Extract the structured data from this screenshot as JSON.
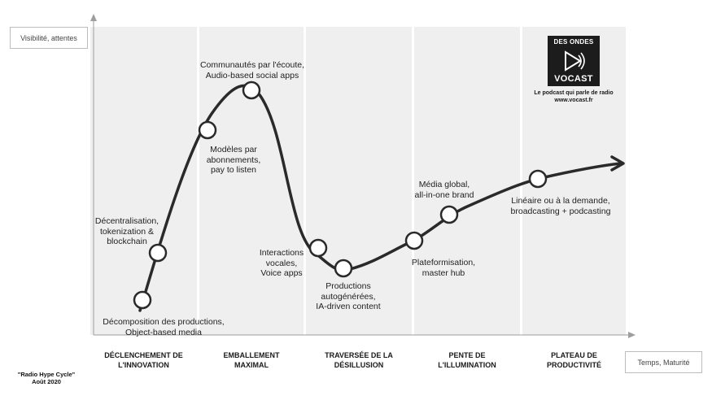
{
  "axes": {
    "y_label": "Visibilité, attentes",
    "x_label": "Temps, Maturité"
  },
  "phases": [
    "DÉCLENCHEMENT DE\nL'INNOVATION",
    "EMBALLEMENT\nMAXIMAL",
    "TRAVERSÉE DE LA\nDÉSILLUSION",
    "PENTE DE\nL'ILLUMINATION",
    "PLATEAU DE\nPRODUCTIVITÉ"
  ],
  "annotations": [
    "Décomposition des productions,\nObject-based media",
    "Décentralisation,\ntokenization &\nblockchain",
    "Modèles par\nabonnements,\npay to listen",
    "Communautés par l'écoute,\nAudio-based social apps",
    "Interactions\nvocales,\nVoice apps",
    "Productions\nautogénérées,\nIA-driven content",
    "Plateformisation,\nmaster hub",
    "Média global,\nall-in-one brand",
    "Linéaire ou à la demande,\nbroadcasting  + podcasting"
  ],
  "logo": {
    "top": "DES ONDES",
    "bottom": "VOCAST",
    "caption": "Le podcast qui parle de radio\nwww.vocast.fr"
  },
  "footer": {
    "title": "\"Radio Hype Cycle\"\nAoût 2020"
  },
  "colors": {
    "panel": "#efefef",
    "curve": "#2a2a2a",
    "axis": "#9e9e9e"
  }
}
